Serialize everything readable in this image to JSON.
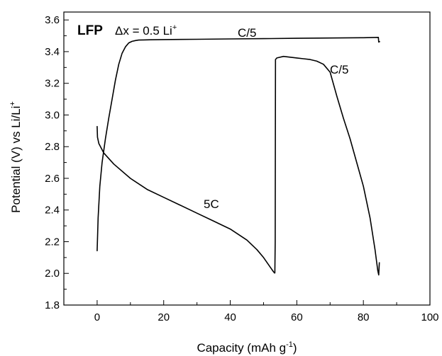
{
  "chart_data": {
    "type": "line",
    "xlabel": "Capacity (mAh g",
    "xlabel_sup": "-1",
    "xlabel_tail": ")",
    "ylabel": "Potential (V) vs Li/Li",
    "ylabel_sup": "+",
    "xlim": [
      -10,
      100
    ],
    "ylim": [
      1.8,
      3.65
    ],
    "xticks": [
      "0",
      "20",
      "40",
      "60",
      "80",
      "100"
    ],
    "yticks": [
      "1.8",
      "2.0",
      "2.2",
      "2.4",
      "2.6",
      "2.8",
      "3.0",
      "3.2",
      "3.4",
      "3.6"
    ],
    "grid": false,
    "legend": "none",
    "annotations": {
      "material": "LFP",
      "delta": "Δx = 0.5 Li",
      "delta_sup": "+",
      "charge_rate_top": "C/5",
      "charge_rate_discharge": "C/5",
      "discharge_rate": "5C"
    },
    "series": [
      {
        "color": "#000000",
        "x": [
          0,
          0.3,
          0.8,
          1.5,
          2.5,
          3.5,
          4.5,
          5.5,
          6.5,
          7.5,
          8.5,
          9.5,
          10.5,
          11.5,
          12.5,
          14,
          16,
          20,
          30,
          40,
          50,
          60,
          70,
          80,
          84.5,
          84.6,
          85
        ],
        "y": [
          2.14,
          2.35,
          2.55,
          2.7,
          2.85,
          2.98,
          3.1,
          3.22,
          3.32,
          3.39,
          3.43,
          3.455,
          3.465,
          3.47,
          3.473,
          3.474,
          3.475,
          3.476,
          3.478,
          3.48,
          3.482,
          3.484,
          3.486,
          3.488,
          3.49,
          3.46,
          3.465
        ]
      },
      {
        "color": "#000000",
        "x": [
          0,
          0.1,
          0.5,
          2,
          5,
          10,
          15,
          20,
          25,
          30,
          35,
          40,
          45,
          48,
          50,
          52,
          53,
          53.4
        ],
        "y": [
          2.93,
          2.86,
          2.82,
          2.76,
          2.69,
          2.6,
          2.53,
          2.48,
          2.43,
          2.38,
          2.33,
          2.28,
          2.21,
          2.15,
          2.1,
          2.04,
          2.01,
          2.0
        ]
      },
      {
        "color": "#000000",
        "x": [
          53.4,
          53.5,
          53.6,
          54,
          56,
          58,
          60,
          62,
          64,
          66,
          68,
          70,
          72,
          74,
          76,
          78,
          80,
          82,
          83.5,
          84.3,
          84.6,
          84.8
        ],
        "y": [
          2.0,
          2.2,
          3.35,
          3.36,
          3.37,
          3.365,
          3.36,
          3.355,
          3.35,
          3.34,
          3.32,
          3.27,
          3.12,
          2.98,
          2.85,
          2.7,
          2.55,
          2.35,
          2.15,
          2.02,
          1.99,
          2.07
        ]
      }
    ]
  }
}
